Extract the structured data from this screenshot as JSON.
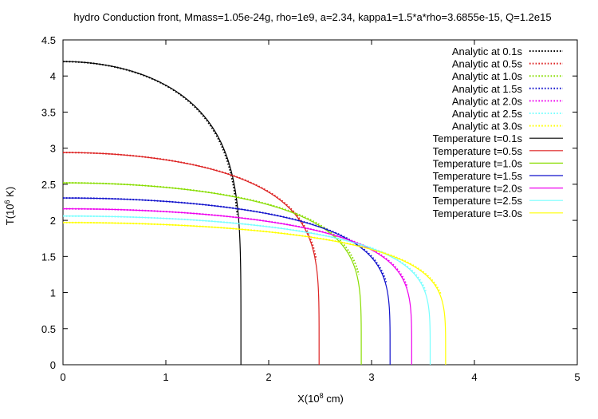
{
  "chart_data": {
    "type": "line",
    "title": "hydro Conduction front, Mmass=1.05e-24g, rho=1e9, a=2.34, kappa1=1.5*a*rho=3.6855e-15, Q=1.2e15",
    "xlabel_prefix": "X(10",
    "xlabel_sup": "8",
    "xlabel_suffix": " cm)",
    "ylabel_prefix": "T(10",
    "ylabel_sup": "6",
    "ylabel_suffix": " K)",
    "xlim": [
      0,
      5
    ],
    "ylim": [
      0,
      4.5
    ],
    "xticks": [
      "0",
      "1",
      "2",
      "3",
      "4",
      "5"
    ],
    "yticks": [
      "0",
      "0.5",
      "1",
      "1.5",
      "2",
      "2.5",
      "3",
      "3.5",
      "4",
      "4.5"
    ],
    "grid": false,
    "legend_position": "top-right",
    "series": [
      {
        "name": "Analytic at 0.1s",
        "style": "dotted",
        "color": "#000000",
        "T0": 4.2,
        "xf": 1.72,
        "endDrop": false
      },
      {
        "name": "Analytic at 0.5s",
        "style": "dotted",
        "color": "#dd2222",
        "T0": 2.94,
        "xf": 2.5,
        "endDrop": false
      },
      {
        "name": "Analytic at 1.0s",
        "style": "dotted",
        "color": "#88dd00",
        "T0": 2.52,
        "xf": 2.92,
        "endDrop": false
      },
      {
        "name": "Analytic at 1.5s",
        "style": "dotted",
        "color": "#1111cc",
        "T0": 2.31,
        "xf": 3.19,
        "endDrop": false
      },
      {
        "name": "Analytic at 2.0s",
        "style": "dotted",
        "color": "#ee00ee",
        "T0": 2.16,
        "xf": 3.4,
        "endDrop": false
      },
      {
        "name": "Analytic at 2.5s",
        "style": "dotted",
        "color": "#77ffff",
        "T0": 2.06,
        "xf": 3.58,
        "endDrop": false
      },
      {
        "name": "Analytic at 3.0s",
        "style": "dotted",
        "color": "#ffff00",
        "T0": 1.97,
        "xf": 3.73,
        "endDrop": false
      },
      {
        "name": "Temperature t=0.1s",
        "style": "solid",
        "color": "#000000",
        "T0": 4.2,
        "xf": 1.73,
        "endDrop": true
      },
      {
        "name": "Temperature t=0.5s",
        "style": "solid",
        "color": "#dd2222",
        "T0": 2.94,
        "xf": 2.49,
        "endDrop": true
      },
      {
        "name": "Temperature t=1.0s",
        "style": "solid",
        "color": "#88dd00",
        "T0": 2.52,
        "xf": 2.9,
        "endDrop": true
      },
      {
        "name": "Temperature t=1.5s",
        "style": "solid",
        "color": "#1111cc",
        "T0": 2.31,
        "xf": 3.18,
        "endDrop": true
      },
      {
        "name": "Temperature t=2.0s",
        "style": "solid",
        "color": "#ee00ee",
        "T0": 2.16,
        "xf": 3.39,
        "endDrop": true
      },
      {
        "name": "Temperature t=2.5s",
        "style": "solid",
        "color": "#77ffff",
        "T0": 2.06,
        "xf": 3.57,
        "endDrop": true
      },
      {
        "name": "Temperature t=3.0s",
        "style": "solid",
        "color": "#ffff00",
        "T0": 1.97,
        "xf": 3.72,
        "endDrop": true
      }
    ]
  }
}
